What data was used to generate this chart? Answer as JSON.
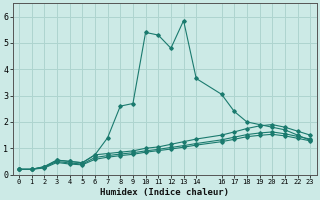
{
  "xlabel": "Humidex (Indice chaleur)",
  "bg_color": "#cceae6",
  "grid_color": "#aed4cf",
  "line_color": "#1a7a6e",
  "xlim": [
    -0.5,
    23.5
  ],
  "ylim": [
    0,
    6.5
  ],
  "yticks": [
    0,
    1,
    2,
    3,
    4,
    5,
    6
  ],
  "x_ticks": [
    0,
    1,
    2,
    3,
    4,
    5,
    6,
    7,
    8,
    9,
    10,
    11,
    12,
    13,
    14,
    16,
    17,
    18,
    19,
    20,
    21,
    22,
    23
  ],
  "x_values": [
    0,
    1,
    2,
    3,
    4,
    5,
    6,
    7,
    8,
    9,
    10,
    11,
    12,
    13,
    14,
    16,
    17,
    18,
    19,
    20,
    21,
    22,
    23
  ],
  "series": [
    [
      0.2,
      0.2,
      0.3,
      0.55,
      0.5,
      0.45,
      0.75,
      1.4,
      2.6,
      2.7,
      5.4,
      5.3,
      4.8,
      5.85,
      3.65,
      3.05,
      2.4,
      2.0,
      1.9,
      1.8,
      1.7,
      1.5,
      1.3
    ],
    [
      0.2,
      0.2,
      0.3,
      0.55,
      0.5,
      0.45,
      0.75,
      0.8,
      0.85,
      0.9,
      1.0,
      1.05,
      1.15,
      1.25,
      1.35,
      1.5,
      1.62,
      1.75,
      1.85,
      1.9,
      1.8,
      1.65,
      1.5
    ],
    [
      0.2,
      0.2,
      0.28,
      0.5,
      0.44,
      0.4,
      0.65,
      0.72,
      0.78,
      0.83,
      0.9,
      0.96,
      1.03,
      1.1,
      1.18,
      1.32,
      1.42,
      1.52,
      1.58,
      1.62,
      1.55,
      1.45,
      1.35
    ],
    [
      0.2,
      0.2,
      0.25,
      0.46,
      0.4,
      0.37,
      0.58,
      0.66,
      0.72,
      0.77,
      0.85,
      0.91,
      0.97,
      1.04,
      1.12,
      1.25,
      1.34,
      1.44,
      1.49,
      1.53,
      1.47,
      1.38,
      1.28
    ]
  ]
}
